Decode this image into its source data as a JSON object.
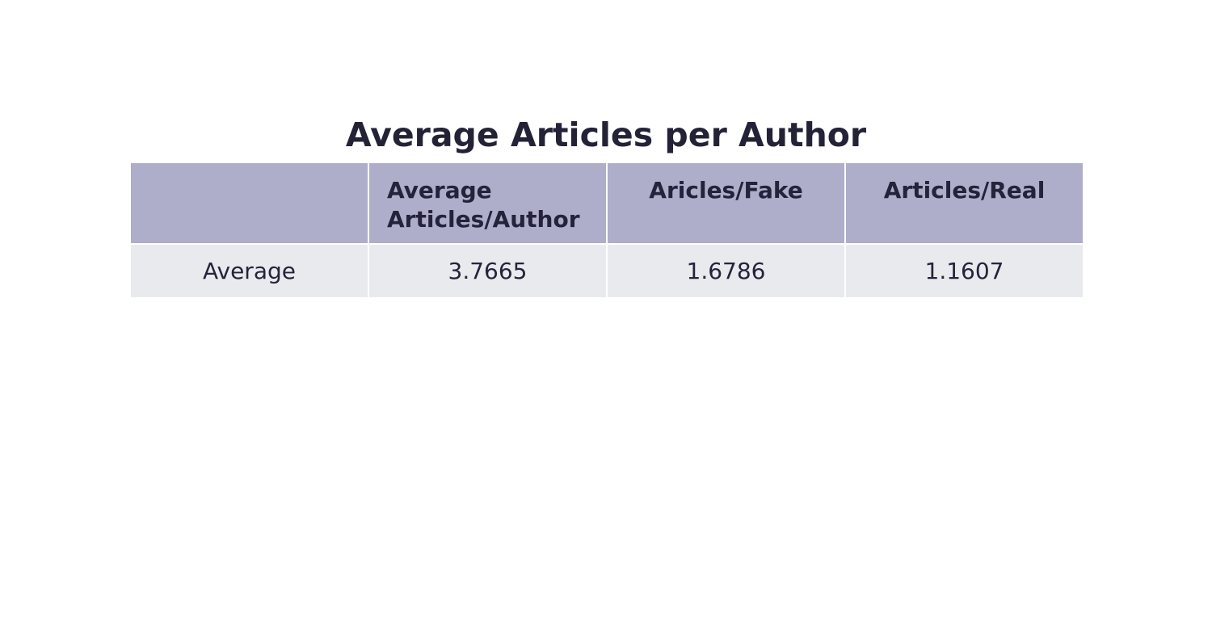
{
  "chart_data": {
    "type": "table",
    "title": "Average Articles per Author",
    "columns": [
      "",
      "Average Articles/Author",
      "Aricles/Fake",
      "Articles/Real"
    ],
    "rows": [
      {
        "label": "Average",
        "values": [
          "3.7665",
          "1.6786",
          "1.1607"
        ]
      }
    ],
    "colors": {
      "header_fill": "#aeaeca",
      "cell_fill": "#e9eaee",
      "text": "#25233b",
      "border": "#ffffff"
    }
  }
}
